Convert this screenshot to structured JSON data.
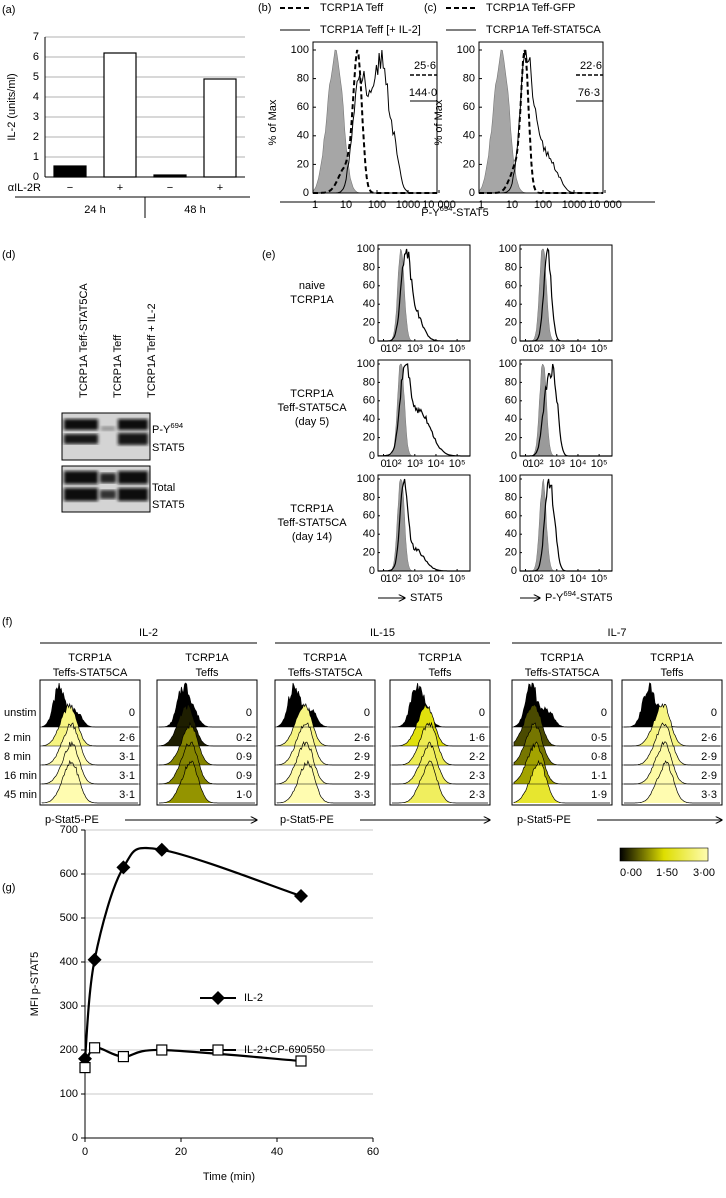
{
  "chart_data": [
    {
      "type": "bar",
      "label": "(a)",
      "ylabel": "IL-2 (units/ml)",
      "xlabel": "αIL-2R",
      "categories": [
        "−",
        "+",
        "−",
        "+"
      ],
      "values": [
        0.55,
        6.2,
        0.1,
        4.9
      ],
      "colors": [
        "#000000",
        "#ffffff",
        "#000000",
        "#ffffff"
      ],
      "groups": [
        "24 h",
        "48 h"
      ],
      "ylim": [
        0,
        7
      ],
      "yticks": [
        0,
        1,
        2,
        3,
        4,
        5,
        6,
        7
      ],
      "grid": true
    },
    {
      "type": "line",
      "label": "(g)",
      "xlabel": "Time (min)",
      "ylabel": "MFI p-STAT5",
      "x": [
        0,
        2,
        8,
        16,
        45
      ],
      "series": [
        {
          "name": "IL-2",
          "color": "#000000",
          "marker": "diamond",
          "values": [
            180,
            405,
            615,
            655,
            550
          ]
        },
        {
          "name": "IL-2+CP-690550",
          "color": "#000000",
          "marker": "square",
          "values": [
            160,
            205,
            185,
            200,
            175
          ]
        }
      ],
      "xlim": [
        0,
        60
      ],
      "xticks": [
        0,
        20,
        40,
        60
      ],
      "ylim": [
        0,
        700
      ],
      "yticks": [
        0,
        100,
        200,
        300,
        400,
        500,
        600,
        700
      ],
      "grid": true,
      "legend": "center"
    }
  ],
  "panel_b": {
    "label": "(b)",
    "legend": [
      "TCRP1A Teff",
      "TCRP1A Teff [+ IL-2]"
    ],
    "stats": [
      "25·6",
      "144·0"
    ],
    "ylabel": "% of Max",
    "yticks": [
      0,
      20,
      40,
      60,
      80,
      100
    ],
    "xticks": [
      "1",
      "10",
      "100",
      "1000",
      "10 000"
    ]
  },
  "panel_c": {
    "label": "(c)",
    "legend": [
      "TCRP1A Teff-GFP",
      "TCRP1A Teff-STAT5CA"
    ],
    "stats": [
      "22·6",
      "76·3"
    ],
    "ylabel": "% of Max",
    "yticks": [
      0,
      20,
      40,
      60,
      80,
      100
    ],
    "xticks": [
      "1",
      "10",
      "100",
      "1000",
      "10 000"
    ]
  },
  "xlabel_bc": {
    "text": "P-Y",
    "sup": "694",
    "rest": "-STAT5"
  },
  "panel_d": {
    "label": "(d)",
    "lanes": [
      "TCRP1A Teff-STAT5CA",
      "TCRP1A  Teff",
      "TCRP1A  Teff + IL-2"
    ],
    "blots": [
      {
        "text": "P-Y",
        "sup": "694",
        "line2": "STAT5"
      },
      {
        "text": "Total",
        "line2": "STAT5"
      }
    ]
  },
  "panel_e": {
    "label": "(e)",
    "rows": [
      [
        "naive",
        "TCRP1A"
      ],
      [
        "TCRP1A",
        "Teff-STAT5CA",
        "(day 5)"
      ],
      [
        "TCRP1A",
        "Teff-STAT5CA",
        "(day 14)"
      ]
    ],
    "yticks": [
      0,
      20,
      40,
      60,
      80,
      100
    ],
    "xticks": [
      "0",
      "10²",
      "10³",
      "10⁴",
      "10⁵"
    ],
    "xlabels": [
      {
        "text": "STAT5"
      },
      {
        "text": "P-Y",
        "sup": "694",
        "rest": "-STAT5"
      }
    ]
  },
  "panel_f": {
    "label": "(f)",
    "rows": [
      "unstim",
      "2 min",
      "8 min",
      "16 min",
      "45 min"
    ],
    "xlabel": "p-Stat5-PE",
    "scale": [
      "0·00",
      "1·50",
      "3·00"
    ],
    "groups": [
      {
        "name": "IL-2",
        "panels": [
          {
            "title": [
              "TCRP1A",
              "Teffs-STAT5CA"
            ],
            "values": [
              "0",
              "2·6",
              "3·1",
              "3·1",
              "3·1"
            ]
          },
          {
            "title": [
              "TCRP1A",
              "Teffs"
            ],
            "values": [
              "0",
              "0·2",
              "0·9",
              "0·9",
              "1·0"
            ]
          }
        ]
      },
      {
        "name": "IL-15",
        "panels": [
          {
            "title": [
              "TCRP1A",
              "Teffs-STAT5CA"
            ],
            "values": [
              "0",
              "2·6",
              "2·9",
              "2·9",
              "3·3"
            ]
          },
          {
            "title": [
              "TCRP1A",
              "Teffs"
            ],
            "values": [
              "0",
              "1·6",
              "2·2",
              "2·3",
              "2·3"
            ]
          }
        ]
      },
      {
        "name": "IL-7",
        "panels": [
          {
            "title": [
              "TCRP1A",
              "Teffs-STAT5CA"
            ],
            "values": [
              "0",
              "0·5",
              "0·8",
              "1·1",
              "1·9"
            ]
          },
          {
            "title": [
              "TCRP1A",
              "Teffs"
            ],
            "values": [
              "0",
              "2·6",
              "2·9",
              "2·9",
              "3·3"
            ]
          }
        ]
      }
    ]
  }
}
